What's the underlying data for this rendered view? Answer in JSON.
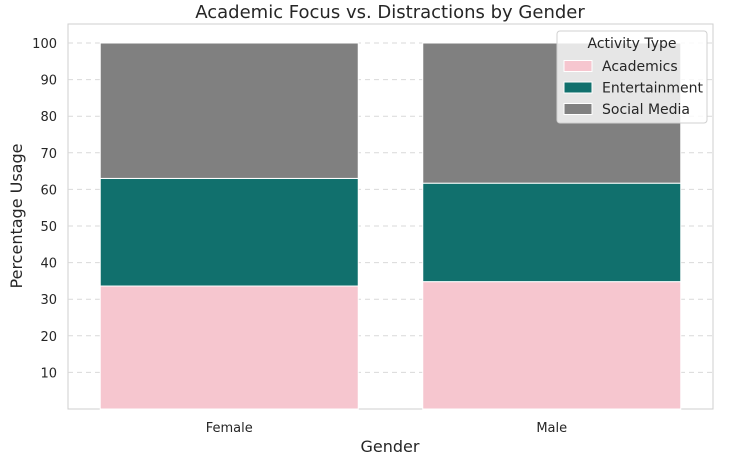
{
  "chart_data": {
    "type": "bar",
    "stacked": true,
    "title": "Academic Focus vs. Distractions by Gender",
    "xlabel": "Gender",
    "ylabel": "Percentage Usage",
    "categories": [
      "Female",
      "Male"
    ],
    "series": [
      {
        "name": "Academics",
        "values": [
          33.6,
          34.8
        ],
        "color": "#f6c6cf"
      },
      {
        "name": "Entertainment",
        "values": [
          29.4,
          26.9
        ],
        "color": "#11706d"
      },
      {
        "name": "Social Media",
        "values": [
          37.0,
          38.3
        ],
        "color": "#808080"
      }
    ],
    "ylim": [
      0,
      100
    ],
    "yticks": [
      10,
      20,
      30,
      40,
      50,
      60,
      70,
      80,
      90,
      100
    ],
    "grid": "y-dashed",
    "legend": {
      "title": "Activity Type",
      "placement": "top-right"
    }
  }
}
